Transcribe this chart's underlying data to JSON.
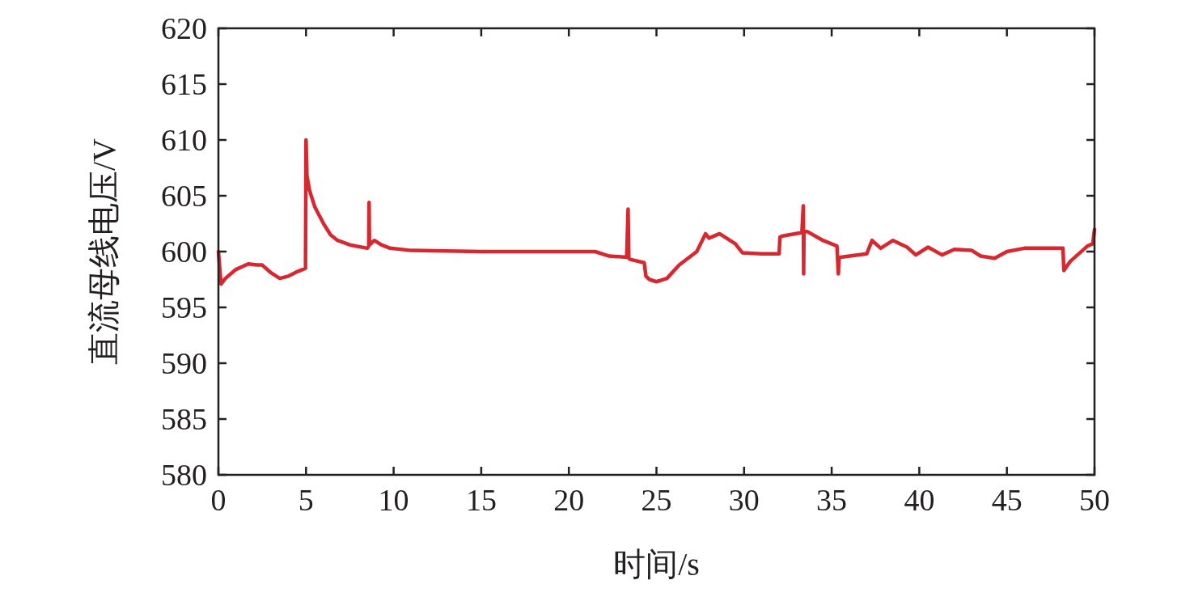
{
  "chart_data": {
    "type": "line",
    "xlabel": "时间/s",
    "ylabel": "直流母线电压/V",
    "xlim": [
      0,
      50
    ],
    "xticks": [
      0,
      5,
      10,
      15,
      20,
      25,
      30,
      35,
      40,
      45,
      50
    ],
    "ylim": [
      580,
      620
    ],
    "yticks": [
      580,
      585,
      590,
      595,
      600,
      605,
      610,
      615,
      620
    ],
    "grid": false,
    "marker": "none",
    "line_style": "solid",
    "series": [
      {
        "color": "#d7282f",
        "x": [
          0,
          0.15,
          0.4,
          1,
          1.7,
          2.2,
          2.5,
          3,
          3.5,
          4,
          4.5,
          4.97,
          5,
          5.05,
          5.2,
          5.5,
          6,
          6.4,
          6.8,
          7.5,
          8.5,
          8.58,
          8.6,
          8.62,
          8.9,
          9.3,
          9.8,
          11,
          15,
          21.5,
          22.3,
          23.3,
          23.38,
          23.42,
          23.5,
          24.3,
          24.4,
          24.6,
          25,
          25.6,
          26.3,
          27.3,
          27.8,
          28,
          28.6,
          29.5,
          29.9,
          31,
          32,
          32.05,
          32.2,
          33.3,
          33.38,
          33.4,
          33.42,
          33.6,
          34.5,
          35.3,
          35.38,
          35.42,
          35.5,
          37,
          37.3,
          37.8,
          38.5,
          39.3,
          39.8,
          40.5,
          41.3,
          42,
          43,
          43.5,
          44.3,
          45,
          46,
          48.2,
          48.25,
          48.6,
          49.6,
          49.9,
          50
        ],
        "values": [
          600,
          597.1,
          597.6,
          598.4,
          598.9,
          598.8,
          598.8,
          598.1,
          597.6,
          597.8,
          598.2,
          598.5,
          610,
          606.8,
          605.5,
          604,
          602.5,
          601.5,
          601,
          600.6,
          600.3,
          600.5,
          604.4,
          600.6,
          601,
          600.6,
          600.3,
          600.1,
          600,
          600,
          599.6,
          599.5,
          603.8,
          599.4,
          599.3,
          599,
          597.8,
          597.5,
          597.3,
          597.6,
          598.8,
          600,
          601.6,
          601.2,
          601.6,
          600.7,
          599.9,
          599.8,
          599.8,
          601.3,
          601.4,
          601.7,
          604.1,
          598,
          601.8,
          601.8,
          601,
          600.5,
          598,
          599.4,
          599.5,
          599.8,
          601,
          600.3,
          601,
          600.4,
          599.7,
          600.4,
          599.7,
          600.2,
          600.1,
          599.6,
          599.4,
          600,
          600.3,
          600.3,
          598.3,
          599.1,
          600.5,
          600.7,
          602
        ]
      }
    ]
  }
}
